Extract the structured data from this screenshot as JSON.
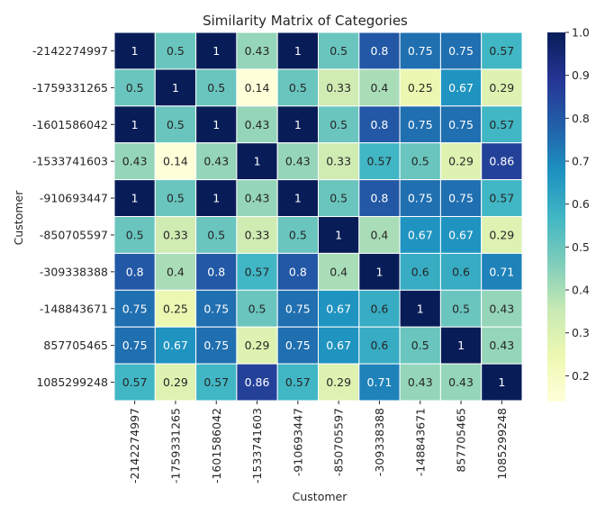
{
  "chart_data": {
    "type": "heatmap",
    "title": "Similarity Matrix of Categories",
    "xlabel": "Customer",
    "ylabel": "Customer",
    "categories": [
      "-2142274997",
      "-1759331265",
      "-1601586042",
      "-1533741603",
      "-910693447",
      "-850705597",
      "-309338388",
      "-148843671",
      "857705465",
      "1085299248"
    ],
    "values": [
      [
        1,
        0.5,
        1,
        0.43,
        1,
        0.5,
        0.8,
        0.75,
        0.75,
        0.57
      ],
      [
        0.5,
        1,
        0.5,
        0.14,
        0.5,
        0.33,
        0.4,
        0.25,
        0.67,
        0.29
      ],
      [
        1,
        0.5,
        1,
        0.43,
        1,
        0.5,
        0.8,
        0.75,
        0.75,
        0.57
      ],
      [
        0.43,
        0.14,
        0.43,
        1,
        0.43,
        0.33,
        0.57,
        0.5,
        0.29,
        0.86
      ],
      [
        1,
        0.5,
        1,
        0.43,
        1,
        0.5,
        0.8,
        0.75,
        0.75,
        0.57
      ],
      [
        0.5,
        0.33,
        0.5,
        0.33,
        0.5,
        1,
        0.4,
        0.67,
        0.67,
        0.29
      ],
      [
        0.8,
        0.4,
        0.8,
        0.57,
        0.8,
        0.4,
        1,
        0.6,
        0.6,
        0.71
      ],
      [
        0.75,
        0.25,
        0.75,
        0.5,
        0.75,
        0.67,
        0.6,
        1,
        0.5,
        0.43
      ],
      [
        0.75,
        0.67,
        0.75,
        0.29,
        0.75,
        0.67,
        0.6,
        0.5,
        1,
        0.43
      ],
      [
        0.57,
        0.29,
        0.57,
        0.86,
        0.57,
        0.29,
        0.71,
        0.43,
        0.43,
        1
      ]
    ],
    "colorbar": {
      "ticks": [
        "1.0",
        "0.9",
        "0.8",
        "0.7",
        "0.6",
        "0.5",
        "0.4",
        "0.3",
        "0.2"
      ],
      "range": [
        0.14,
        1.0
      ]
    },
    "colormap": "YlGnBu",
    "colormap_stops": [
      "#ffffd9",
      "#edf8b1",
      "#c7e9b4",
      "#7fcdbb",
      "#41b6c4",
      "#1d91c0",
      "#225ea8",
      "#253494",
      "#081d58"
    ]
  }
}
